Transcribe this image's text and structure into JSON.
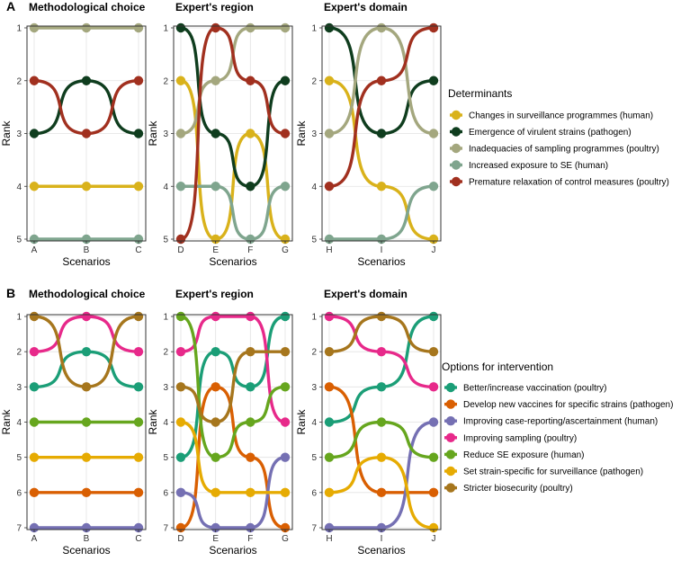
{
  "chart_data": [
    {
      "type": "line",
      "panel_label": "A",
      "title": "Methodological choice",
      "xlabel": "Scenarios",
      "ylabel": "Rank",
      "categories": [
        "A",
        "B",
        "C"
      ],
      "ylim": [
        1,
        5
      ],
      "series": [
        {
          "name": "Changes in surveillance programmes (human)",
          "values": [
            4,
            4,
            4
          ]
        },
        {
          "name": "Emergence of virulent strains (pathogen)",
          "values": [
            3,
            2,
            3
          ]
        },
        {
          "name": "Inadequacies of sampling programmes (poultry)",
          "values": [
            1,
            1,
            1
          ]
        },
        {
          "name": "Increased exposure to SE (human)",
          "values": [
            5,
            5,
            5
          ]
        },
        {
          "name": "Premature relaxation of control measures (poultry)",
          "values": [
            2,
            3,
            2
          ]
        }
      ]
    },
    {
      "type": "line",
      "panel_label": "",
      "title": "Expert's region",
      "xlabel": "Scenarios",
      "ylabel": "Rank",
      "categories": [
        "D",
        "E",
        "F",
        "G"
      ],
      "ylim": [
        1,
        5
      ],
      "series": [
        {
          "name": "Changes in surveillance programmes (human)",
          "values": [
            2,
            5,
            3,
            5
          ]
        },
        {
          "name": "Emergence of virulent strains (pathogen)",
          "values": [
            1,
            3,
            4,
            2
          ]
        },
        {
          "name": "Inadequacies of sampling programmes (poultry)",
          "values": [
            3,
            2,
            1,
            1
          ]
        },
        {
          "name": "Increased exposure to SE (human)",
          "values": [
            4,
            4,
            5,
            4
          ]
        },
        {
          "name": "Premature relaxation of control measures (poultry)",
          "values": [
            5,
            1,
            2,
            3
          ]
        }
      ]
    },
    {
      "type": "line",
      "panel_label": "",
      "title": "Expert's domain",
      "xlabel": "Scenarios",
      "ylabel": "Rank",
      "categories": [
        "H",
        "I",
        "J"
      ],
      "ylim": [
        1,
        5
      ],
      "series": [
        {
          "name": "Changes in surveillance programmes (human)",
          "values": [
            2,
            4,
            5
          ]
        },
        {
          "name": "Emergence of virulent strains (pathogen)",
          "values": [
            1,
            3,
            2
          ]
        },
        {
          "name": "Inadequacies of sampling programmes (poultry)",
          "values": [
            3,
            1,
            3
          ]
        },
        {
          "name": "Increased exposure to SE (human)",
          "values": [
            5,
            5,
            4
          ]
        },
        {
          "name": "Premature relaxation of control measures (poultry)",
          "values": [
            4,
            2,
            1
          ]
        }
      ]
    },
    {
      "type": "line",
      "panel_label": "B",
      "title": "Methodological choice",
      "xlabel": "Scenarios",
      "ylabel": "Rank",
      "categories": [
        "A",
        "B",
        "C"
      ],
      "ylim": [
        1,
        7
      ],
      "series": [
        {
          "name": "Better/increase vaccination (poultry)",
          "values": [
            3,
            2,
            3
          ]
        },
        {
          "name": "Develop new vaccines for specific strains (pathogen)",
          "values": [
            6,
            6,
            6
          ]
        },
        {
          "name": "Improving case-reporting/ascertainment (human)",
          "values": [
            7,
            7,
            7
          ]
        },
        {
          "name": "Improving sampling (poultry)",
          "values": [
            2,
            1,
            2
          ]
        },
        {
          "name": "Reduce SE exposure (human)",
          "values": [
            4,
            4,
            4
          ]
        },
        {
          "name": "Set strain-specific for surveillance (pathogen)",
          "values": [
            5,
            5,
            5
          ]
        },
        {
          "name": "Stricter biosecurity (poultry)",
          "values": [
            1,
            3,
            1
          ]
        }
      ]
    },
    {
      "type": "line",
      "panel_label": "",
      "title": "Expert's region",
      "xlabel": "Scenarios",
      "ylabel": "Rank",
      "categories": [
        "D",
        "E",
        "F",
        "G"
      ],
      "ylim": [
        1,
        7
      ],
      "series": [
        {
          "name": "Better/increase vaccination (poultry)",
          "values": [
            5,
            2,
            3,
            1
          ]
        },
        {
          "name": "Develop new vaccines for specific strains (pathogen)",
          "values": [
            7,
            3,
            5,
            7
          ]
        },
        {
          "name": "Improving case-reporting/ascertainment (human)",
          "values": [
            6,
            7,
            7,
            5
          ]
        },
        {
          "name": "Improving sampling (poultry)",
          "values": [
            2,
            1,
            1,
            4
          ]
        },
        {
          "name": "Reduce SE exposure (human)",
          "values": [
            1,
            5,
            4,
            3
          ]
        },
        {
          "name": "Set strain-specific for surveillance (pathogen)",
          "values": [
            4,
            6,
            6,
            6
          ]
        },
        {
          "name": "Stricter biosecurity (poultry)",
          "values": [
            3,
            4,
            2,
            2
          ]
        }
      ]
    },
    {
      "type": "line",
      "panel_label": "",
      "title": "Expert's domain",
      "xlabel": "Scenarios",
      "ylabel": "Rank",
      "categories": [
        "H",
        "I",
        "J"
      ],
      "ylim": [
        1,
        7
      ],
      "series": [
        {
          "name": "Better/increase vaccination (poultry)",
          "values": [
            4,
            3,
            1
          ]
        },
        {
          "name": "Develop new vaccines for specific strains (pathogen)",
          "values": [
            3,
            6,
            6
          ]
        },
        {
          "name": "Improving case-reporting/ascertainment (human)",
          "values": [
            7,
            7,
            4
          ]
        },
        {
          "name": "Improving sampling (poultry)",
          "values": [
            1,
            2,
            3
          ]
        },
        {
          "name": "Reduce SE exposure (human)",
          "values": [
            5,
            4,
            5
          ]
        },
        {
          "name": "Set strain-specific for surveillance (pathogen)",
          "values": [
            6,
            5,
            7
          ]
        },
        {
          "name": "Stricter biosecurity (poultry)",
          "values": [
            2,
            1,
            2
          ]
        }
      ]
    }
  ],
  "legends": [
    {
      "title": "Determinants",
      "entries": [
        {
          "label": "Changes in surveillance programmes (human)",
          "color": "#D9B21B"
        },
        {
          "label": "Emergence of virulent strains (pathogen)",
          "color": "#0F3D1E"
        },
        {
          "label": "Inadequacies of sampling programmes (poultry)",
          "color": "#A4A77E"
        },
        {
          "label": "Increased exposure to SE (human)",
          "color": "#7FA58E"
        },
        {
          "label": "Premature relaxation of control measures (poultry)",
          "color": "#A1301F"
        }
      ]
    },
    {
      "title": "Options for intervention",
      "entries": [
        {
          "label": "Better/increase vaccination (poultry)",
          "color": "#1B9E77"
        },
        {
          "label": "Develop new vaccines for specific strains (pathogen)",
          "color": "#D95F02"
        },
        {
          "label": "Improving case-reporting/ascertainment (human)",
          "color": "#7570B3"
        },
        {
          "label": "Improving sampling (poultry)",
          "color": "#E7298A"
        },
        {
          "label": "Reduce SE exposure (human)",
          "color": "#66A61E"
        },
        {
          "label": "Set strain-specific for surveillance (pathogen)",
          "color": "#E6AB02"
        },
        {
          "label": "Stricter biosecurity (poultry)",
          "color": "#A6761D"
        }
      ]
    }
  ]
}
